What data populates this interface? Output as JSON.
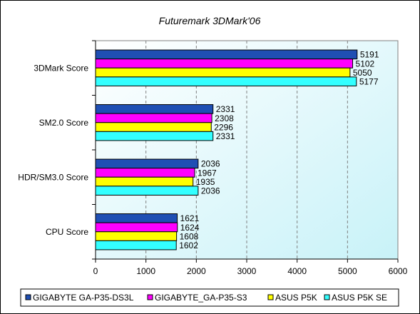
{
  "chart_data": {
    "type": "bar",
    "orientation": "horizontal",
    "title": "Futuremark 3DMark'06",
    "xlabel": "",
    "ylabel": "",
    "categories": [
      "3DMark Score",
      "SM2.0 Score",
      "HDR/SM3.0 Score",
      "CPU Score"
    ],
    "xlim": [
      0,
      6000
    ],
    "xticks": [
      "0",
      "1000",
      "2000",
      "3000",
      "4000",
      "5000",
      "6000"
    ],
    "grid": "vertical dashed",
    "legend_position": "bottom",
    "series": [
      {
        "name": "GIGABYTE GA-P35-DS3L",
        "color": "#1f4fb4",
        "values": [
          5191,
          2331,
          2036,
          1621
        ]
      },
      {
        "name": "GIGABYTE_GA-P35-S3",
        "color": "#ff00ff",
        "values": [
          5102,
          2308,
          1967,
          1624
        ]
      },
      {
        "name": "ASUS P5K",
        "color": "#ffff00",
        "values": [
          5050,
          2296,
          1935,
          1608
        ]
      },
      {
        "name": "ASUS P5K SE",
        "color": "#33ffff",
        "values": [
          5177,
          2331,
          2036,
          1602
        ]
      }
    ],
    "data_labels": [
      [
        "5191",
        "5102",
        "5050",
        "5177"
      ],
      [
        "2331",
        "2308",
        "2296",
        "2331"
      ],
      [
        "2036",
        "1967",
        "1935",
        "2036"
      ],
      [
        "1621",
        "1624",
        "1608",
        "1602"
      ]
    ]
  }
}
